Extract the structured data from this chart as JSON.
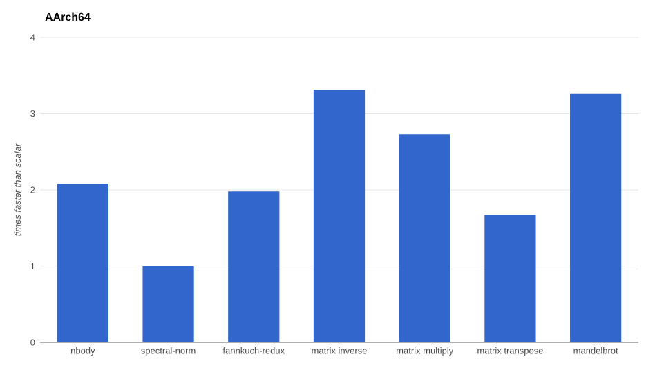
{
  "chart_data": {
    "type": "bar",
    "title": "AArch64",
    "ylabel": "times faster than scalar",
    "categories": [
      "nbody",
      "spectral-norm",
      "fannkuch-redux",
      "matrix inverse",
      "matrix multiply",
      "matrix transpose",
      "mandelbrot"
    ],
    "values": [
      2.08,
      1.0,
      1.98,
      3.31,
      2.73,
      1.67,
      3.26
    ],
    "color": "#3366cc",
    "ylim": [
      0,
      4
    ],
    "yticks": [
      0,
      1,
      2,
      3,
      4
    ],
    "grid": "y"
  }
}
